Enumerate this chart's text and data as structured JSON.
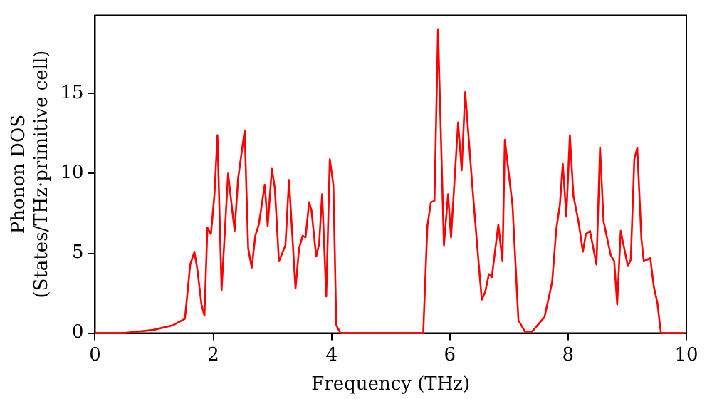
{
  "chart_data": {
    "type": "line",
    "xlabel": "Frequency (THz)",
    "ylabel": "Phonon DOS\n(States/THz·primitive cell)",
    "xlim": [
      0,
      10
    ],
    "ylim": [
      0,
      19.9
    ],
    "xticks": [
      0,
      2,
      4,
      6,
      8,
      10
    ],
    "yticks": [
      0,
      5,
      10,
      15
    ],
    "grid": false,
    "legend": false,
    "marker": "none",
    "line_style": "solid",
    "series": [
      {
        "color": "#ff0000",
        "x": [
          0,
          0.48,
          0.98,
          1.32,
          1.52,
          1.61,
          1.68,
          1.73,
          1.8,
          1.85,
          1.9,
          1.96,
          2.02,
          2.07,
          2.14,
          2.25,
          2.36,
          2.42,
          2.53,
          2.59,
          2.65,
          2.71,
          2.77,
          2.87,
          2.92,
          2.99,
          3.04,
          3.11,
          3.22,
          3.28,
          3.39,
          3.45,
          3.51,
          3.56,
          3.62,
          3.66,
          3.74,
          3.79,
          3.84,
          3.91,
          3.97,
          4.03,
          4.08,
          4.15,
          5.55,
          5.62,
          5.68,
          5.74,
          5.8,
          5.9,
          5.97,
          6.02,
          6.14,
          6.2,
          6.26,
          6.37,
          6.46,
          6.54,
          6.6,
          6.66,
          6.71,
          6.82,
          6.89,
          6.93,
          7.06,
          7.16,
          7.27,
          7.39,
          7.6,
          7.73,
          7.8,
          7.86,
          7.91,
          7.97,
          8.03,
          8.09,
          8.18,
          8.25,
          8.3,
          8.37,
          8.48,
          8.54,
          8.6,
          8.72,
          8.78,
          8.83,
          8.89,
          9.01,
          9.06,
          9.12,
          9.17,
          9.24,
          9.28,
          9.39,
          9.45,
          9.51,
          9.57,
          9.97
        ],
        "values": [
          0,
          0,
          0.2,
          0.5,
          0.9,
          4.3,
          5.1,
          4,
          1.8,
          1.1,
          6.6,
          6.2,
          8.7,
          12.4,
          2.7,
          10,
          6.4,
          9.7,
          12.7,
          5.3,
          4.1,
          6.1,
          6.8,
          9.3,
          6.7,
          10.3,
          9.1,
          4.5,
          5.5,
          9.6,
          2.8,
          5.3,
          6.1,
          6,
          8.2,
          7.7,
          4.8,
          5.6,
          8.7,
          2.3,
          10.9,
          9.3,
          0.5,
          0,
          0,
          6.7,
          8.2,
          8.3,
          19,
          5.5,
          8.7,
          6,
          13.2,
          10.2,
          15.1,
          9.7,
          5.6,
          2.1,
          2.6,
          3.7,
          3.5,
          6.8,
          4.5,
          12.1,
          8,
          0.8,
          0.1,
          0.1,
          1,
          3.2,
          6.5,
          8,
          10.6,
          7.3,
          12.4,
          8.6,
          6.9,
          5.1,
          6.2,
          6.4,
          4.3,
          11.6,
          7,
          4.9,
          4.5,
          1.8,
          6.4,
          4.2,
          4.6,
          10.9,
          11.6,
          5.9,
          4.5,
          4.7,
          2.9,
          1.9,
          0,
          0
        ]
      }
    ]
  }
}
